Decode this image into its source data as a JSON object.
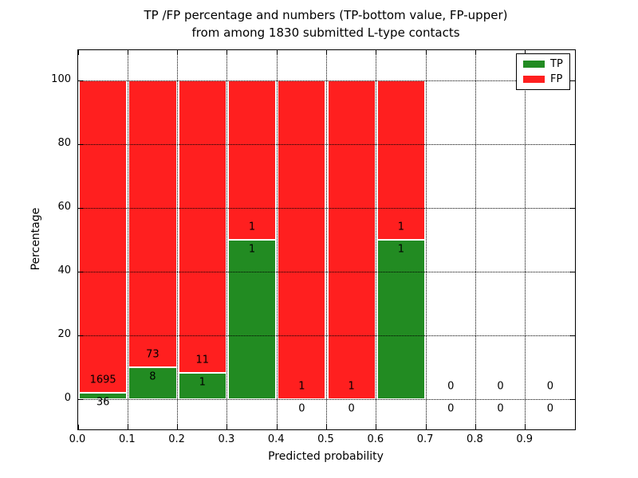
{
  "chart_data": {
    "type": "bar",
    "stacked": true,
    "title_line1": "TP /FP percentage and numbers (TP-bottom value, FP-upper)",
    "title_line2": "from among 1830 submitted L-type contacts",
    "xlabel": "Predicted probability",
    "ylabel": "Percentage",
    "total_submitted": 1830,
    "bin_width": 0.1,
    "bin_starts": [
      0.0,
      0.1,
      0.2,
      0.3,
      0.4,
      0.5,
      0.6,
      0.7,
      0.8,
      0.9
    ],
    "series": [
      {
        "name": "TP",
        "color": "#228b22",
        "values": [
          36,
          8,
          1,
          1,
          0,
          0,
          1,
          0,
          0,
          0
        ]
      },
      {
        "name": "FP",
        "color": "#ff1f1f",
        "values": [
          1695,
          73,
          11,
          1,
          1,
          1,
          1,
          0,
          0,
          0
        ]
      }
    ],
    "bar_total_percent": 100,
    "label_note": "TP count below stack boundary, FP count above stack boundary",
    "xticks": [
      "0.0",
      "0.1",
      "0.2",
      "0.3",
      "0.4",
      "0.5",
      "0.6",
      "0.7",
      "0.8",
      "0.9"
    ],
    "yticks": [
      0,
      20,
      40,
      60,
      80,
      100
    ],
    "xlim": [
      0.0,
      1.0
    ],
    "ylim": [
      -9.5,
      109.5
    ],
    "grid": true,
    "legend": {
      "position": "upper right",
      "entries": [
        "TP",
        "FP"
      ]
    }
  }
}
